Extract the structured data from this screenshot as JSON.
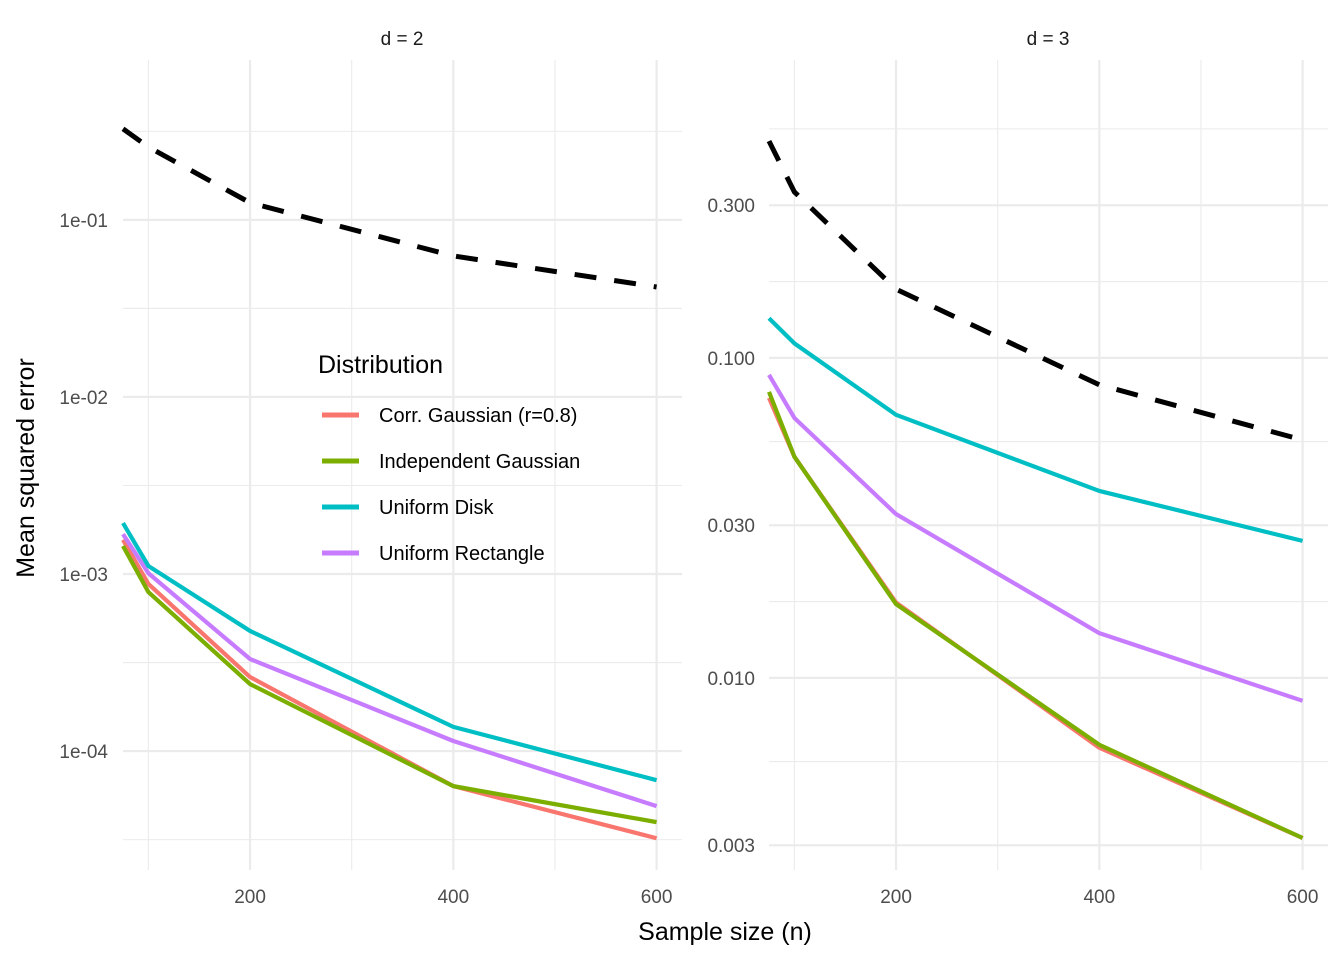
{
  "chart_data": {
    "type": "line",
    "xlabel": "Sample size (n)",
    "ylabel": "Mean squared error",
    "x": [
      75,
      100,
      200,
      400,
      600
    ],
    "x_ticks": [
      200,
      400,
      600
    ],
    "x_tick_labels": [
      "200",
      "400",
      "600"
    ],
    "xlim": [
      75,
      625
    ],
    "grid": true,
    "legend": {
      "title": "Distribution",
      "placement": "inside-left-panel-center",
      "entries": [
        {
          "name": "Corr. Gaussian (r=0.8)",
          "color": "#F8766D"
        },
        {
          "name": "Independent Gaussian",
          "color": "#7CAE00"
        },
        {
          "name": "Uniform Disk",
          "color": "#00BFC4"
        },
        {
          "name": "Uniform Rectangle",
          "color": "#C77CFF"
        }
      ]
    },
    "panels": [
      {
        "title": "d = 2",
        "y_scale": "log10",
        "ylim": [
          2.13e-05,
          0.8
        ],
        "y_ticks": [
          0.1,
          0.01,
          0.001,
          0.0001
        ],
        "y_tick_labels": [
          "1e-01",
          "1e-02",
          "1e-03",
          "1e-04"
        ],
        "reference": {
          "name": "reference (dashed)",
          "color": "#000000",
          "style": "dashed",
          "values": [
            0.327,
            0.258,
            0.125,
            0.0626,
            0.0418
          ]
        },
        "series": [
          {
            "name": "Corr. Gaussian (r=0.8)",
            "color": "#F8766D",
            "values": [
              0.00156,
              0.000879,
              0.000262,
              6.34e-05,
              3.22e-05
            ]
          },
          {
            "name": "Independent Gaussian",
            "color": "#7CAE00",
            "values": [
              0.00144,
              0.000791,
              0.000239,
              6.34e-05,
              3.97e-05
            ]
          },
          {
            "name": "Uniform Disk",
            "color": "#00BFC4",
            "values": [
              0.00194,
              0.00111,
              0.000477,
              0.000137,
              6.85e-05
            ]
          },
          {
            "name": "Uniform Rectangle",
            "color": "#C77CFF",
            "values": [
              0.00168,
              0.00101,
              0.000331,
              0.000114,
              4.89e-05
            ]
          }
        ]
      },
      {
        "title": "d = 3",
        "y_scale": "log10",
        "ylim": [
          0.00251,
          0.853
        ],
        "y_ticks": [
          0.3,
          0.1,
          0.03,
          0.01,
          0.003
        ],
        "y_tick_labels": [
          "0.300",
          "0.100",
          "0.030",
          "0.010",
          "0.003"
        ],
        "reference": {
          "name": "reference (dashed)",
          "color": "#000000",
          "style": "dashed",
          "values": [
            0.476,
            0.33,
            0.164,
            0.0824,
            0.0554
          ]
        },
        "series": [
          {
            "name": "Corr. Gaussian (r=0.8)",
            "color": "#F8766D",
            "values": [
              0.075,
              0.0491,
              0.0172,
              0.00605,
              0.00316
            ]
          },
          {
            "name": "Independent Gaussian",
            "color": "#7CAE00",
            "values": [
              0.0783,
              0.0491,
              0.017,
              0.00618,
              0.00316
            ]
          },
          {
            "name": "Uniform Disk",
            "color": "#00BFC4",
            "values": [
              0.133,
              0.111,
              0.0664,
              0.0384,
              0.0268
            ]
          },
          {
            "name": "Uniform Rectangle",
            "color": "#C77CFF",
            "values": [
              0.0885,
              0.0649,
              0.0325,
              0.0138,
              0.00848
            ]
          }
        ]
      }
    ]
  }
}
